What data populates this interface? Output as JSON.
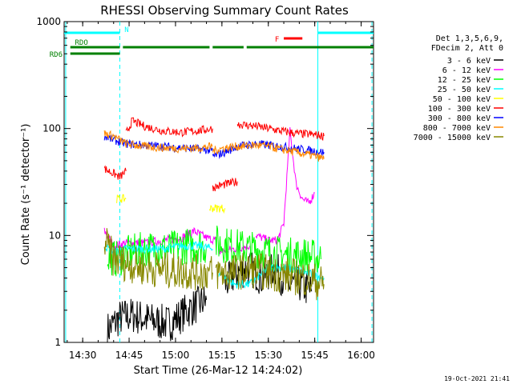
{
  "chart_data": {
    "type": "line",
    "title": "RHESSI Observing Summary Count Rates",
    "xlabel": "Start Time (26-Mar-12 14:24:02)",
    "ylabel": "Count Rate (s⁻¹ detector⁻¹)",
    "x_unit": "minutes after 14:24:02",
    "xlim": [
      0,
      100
    ],
    "ylim": [
      1,
      1000
    ],
    "yscale": "log",
    "x_ticks": [
      {
        "t": 6,
        "label": "14:30"
      },
      {
        "t": 21,
        "label": "14:45"
      },
      {
        "t": 36,
        "label": "15:00"
      },
      {
        "t": 51,
        "label": "15:15"
      },
      {
        "t": 66,
        "label": "15:30"
      },
      {
        "t": 81,
        "label": "15:45"
      },
      {
        "t": 96,
        "label": "16:00"
      }
    ],
    "y_ticks": [
      {
        "v": 1,
        "label": "1"
      },
      {
        "v": 10,
        "label": "10"
      },
      {
        "v": 100,
        "label": "100"
      },
      {
        "v": 1000,
        "label": "1000"
      }
    ],
    "legend_header": [
      "Det 1,3,5,6,9,",
      "FDecim 2, Att 0"
    ],
    "legend_position": "right",
    "series": [
      {
        "name": "3 - 6 keV",
        "color": "#000000",
        "segments": [
          [
            [
              14,
              1.3
            ],
            [
              18,
              1.7
            ],
            [
              22,
              1.8
            ],
            [
              28,
              1.6
            ],
            [
              34,
              1.5
            ],
            [
              40,
              2.0
            ],
            [
              46,
              2.5
            ]
          ],
          [
            [
              52,
              3.5
            ],
            [
              56,
              4.5
            ],
            [
              60,
              5.0
            ],
            [
              64,
              4.0
            ],
            [
              68,
              5.0
            ],
            [
              72,
              3.5
            ],
            [
              76,
              3.5
            ],
            [
              80,
              3.0
            ]
          ]
        ]
      },
      {
        "name": "6 - 12 keV",
        "color": "#ff00ff",
        "segments": [
          [
            [
              13,
              11
            ],
            [
              16,
              8.0
            ],
            [
              20,
              8.5
            ],
            [
              26,
              8.5
            ],
            [
              32,
              9.0
            ],
            [
              38,
              9.5
            ],
            [
              42,
              11
            ],
            [
              46,
              9.5
            ],
            [
              49,
              9.0
            ]
          ],
          [
            [
              50,
              7.0
            ],
            [
              55,
              7.5
            ],
            [
              60,
              8.0
            ]
          ],
          [
            [
              62,
              10
            ],
            [
              66,
              9.0
            ],
            [
              69,
              9.0
            ],
            [
              71,
              13
            ],
            [
              73,
              95
            ],
            [
              75,
              30
            ],
            [
              77,
              22
            ],
            [
              79,
              20
            ],
            [
              81,
              25
            ]
          ]
        ]
      },
      {
        "name": "12 - 25 keV",
        "color": "#00ff00",
        "segments": [
          [
            [
              14,
              6.5
            ],
            [
              17,
              6.0
            ],
            [
              22,
              7.0
            ],
            [
              28,
              7.5
            ],
            [
              34,
              7.5
            ],
            [
              40,
              8.0
            ],
            [
              46,
              8.0
            ]
          ],
          [
            [
              49,
              8.5
            ],
            [
              54,
              8.0
            ],
            [
              60,
              7.5
            ],
            [
              66,
              7.0
            ],
            [
              72,
              6.5
            ],
            [
              78,
              6.5
            ],
            [
              83,
              6.0
            ]
          ]
        ]
      },
      {
        "name": "25 - 50 keV",
        "color": "#00ffff",
        "segments": [
          [
            [
              13,
              8.0
            ],
            [
              16,
              7.0
            ],
            [
              20,
              7.5
            ],
            [
              26,
              7.5
            ],
            [
              32,
              7.5
            ],
            [
              38,
              8.0
            ],
            [
              44,
              8.0
            ],
            [
              48,
              7.5
            ]
          ],
          [
            [
              50,
              4.5
            ],
            [
              55,
              3.5
            ],
            [
              60,
              3.5
            ],
            [
              66,
              5.0
            ],
            [
              72,
              5.0
            ],
            [
              78,
              4.5
            ],
            [
              84,
              4.0
            ]
          ]
        ]
      },
      {
        "name": "50 - 100 keV",
        "color": "#ffff00",
        "segments": [
          [
            [
              17,
              22
            ],
            [
              20,
              22
            ]
          ],
          [
            [
              47,
              18
            ],
            [
              52,
              18
            ]
          ]
        ]
      },
      {
        "name": "100 - 300 keV",
        "color": "#ff0000",
        "segments": [
          [
            [
              13,
              42
            ],
            [
              16,
              38
            ],
            [
              18,
              35
            ],
            [
              20,
              40
            ]
          ],
          [
            [
              20,
              90
            ],
            [
              22,
              118
            ],
            [
              26,
              105
            ],
            [
              32,
              95
            ],
            [
              38,
              92
            ],
            [
              44,
              96
            ],
            [
              48,
              100
            ]
          ],
          [
            [
              48,
              28
            ],
            [
              52,
              30
            ],
            [
              56,
              32
            ]
          ],
          [
            [
              56,
              110
            ],
            [
              62,
              105
            ],
            [
              66,
              100
            ],
            [
              70,
              95
            ],
            [
              75,
              90
            ],
            [
              80,
              88
            ],
            [
              84,
              85
            ]
          ]
        ]
      },
      {
        "name": "300 - 800 keV",
        "color": "#0000ff",
        "segments": [
          [
            [
              13,
              85
            ],
            [
              16,
              78
            ],
            [
              20,
              72
            ],
            [
              26,
              70
            ],
            [
              32,
              68
            ],
            [
              38,
              66
            ],
            [
              44,
              64
            ],
            [
              48,
              62
            ]
          ],
          [
            [
              48,
              55
            ],
            [
              52,
              60
            ],
            [
              56,
              68
            ],
            [
              62,
              72
            ],
            [
              66,
              70
            ],
            [
              70,
              68
            ],
            [
              75,
              65
            ],
            [
              80,
              62
            ],
            [
              84,
              60
            ]
          ]
        ]
      },
      {
        "name": "800 - 7000 keV",
        "color": "#ff8800",
        "segments": [
          [
            [
              13,
              90
            ],
            [
              16,
              85
            ],
            [
              20,
              72
            ],
            [
              26,
              68
            ],
            [
              32,
              66
            ],
            [
              38,
              65
            ],
            [
              44,
              66
            ],
            [
              48,
              68
            ]
          ],
          [
            [
              48,
              62
            ],
            [
              52,
              66
            ],
            [
              56,
              68
            ],
            [
              62,
              70
            ],
            [
              66,
              68
            ],
            [
              70,
              64
            ],
            [
              75,
              60
            ],
            [
              80,
              56
            ],
            [
              84,
              52
            ]
          ]
        ]
      },
      {
        "name": "7000 - 15000 keV",
        "color": "#888800",
        "segments": [
          [
            [
              13,
              9.0
            ],
            [
              16,
              6.0
            ],
            [
              20,
              5.5
            ],
            [
              26,
              5.0
            ],
            [
              32,
              4.8
            ],
            [
              38,
              4.6
            ],
            [
              44,
              4.5
            ],
            [
              48,
              4.5
            ]
          ],
          [
            [
              49,
              4.5
            ],
            [
              54,
              4.5
            ],
            [
              60,
              4.8
            ],
            [
              66,
              4.5
            ],
            [
              72,
              4.2
            ],
            [
              78,
              4.0
            ],
            [
              84,
              3.5
            ]
          ]
        ]
      }
    ],
    "indicators": [
      {
        "label": "N",
        "color": "#00ffff",
        "spans": [
          [
            0,
            18
          ],
          [
            82,
            100
          ]
        ]
      },
      {
        "label": "F",
        "color": "#ff0000",
        "spans": [
          [
            71,
            77
          ]
        ]
      },
      {
        "label": "RDO",
        "color": "#008000",
        "spans": [
          [
            2,
            18
          ],
          [
            19,
            47
          ],
          [
            48,
            58
          ],
          [
            59,
            100
          ]
        ]
      },
      {
        "label": "RD6",
        "color": "#008000",
        "spans": []
      }
    ],
    "vertical_markers": [
      {
        "t": 0.5,
        "color": "#00ffff",
        "style": "solid"
      },
      {
        "t": 18,
        "color": "#00ffff",
        "style": "dashed"
      },
      {
        "t": 82,
        "color": "#00ffff",
        "style": "solid"
      },
      {
        "t": 99.5,
        "color": "#00ffff",
        "style": "dashed"
      }
    ],
    "footer": "19-Oct-2021 21:41"
  }
}
